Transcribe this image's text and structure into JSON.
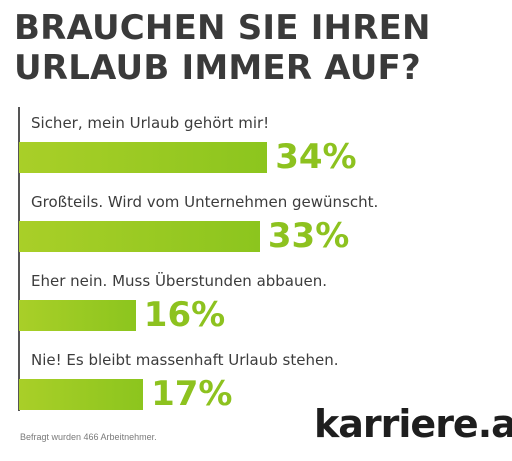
{
  "title": "BRAUCHEN SIE IHREN URLAUB IMMER AUF?",
  "colors": {
    "bar": "#8cc51e",
    "percent": "#8dc21f",
    "title": "#3a3a3a"
  },
  "chart_data": {
    "type": "bar",
    "orientation": "horizontal",
    "title": "BRAUCHEN SIE IHREN URLAUB IMMER AUF?",
    "categories": [
      "Sicher, mein Urlaub gehört mir!",
      "Großteils. Wird vom Unternehmen gewünscht.",
      "Eher nein. Muss Überstunden abbauen.",
      "Nie! Es bleibt massenhaft Urlaub stehen."
    ],
    "values": [
      34,
      33,
      16,
      17
    ],
    "value_labels": [
      "34%",
      "33%",
      "16%",
      "17%"
    ],
    "unit": "%",
    "grid": false,
    "legend": "none"
  },
  "footnote": "Befragt wurden 466 Arbeitnehmer.",
  "logo": {
    "name": "karriere",
    "dot": ".",
    "tld": "at"
  }
}
